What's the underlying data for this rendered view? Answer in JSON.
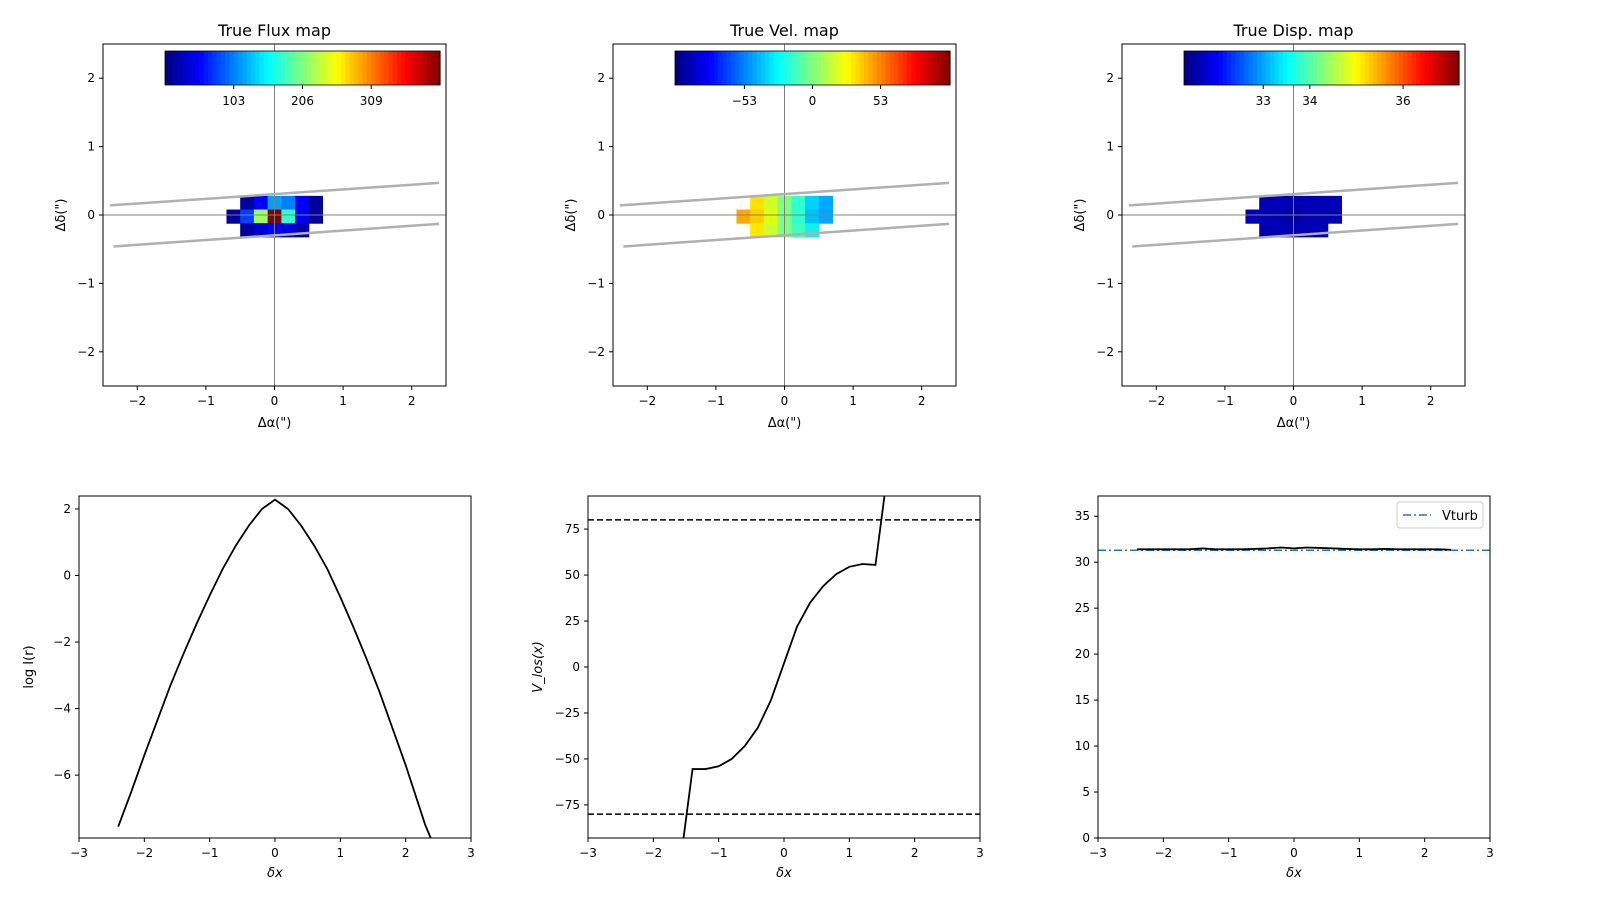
{
  "chart_data": [
    {
      "type": "heatmap",
      "title": "True Flux map",
      "xlabel": "Δα(\")",
      "ylabel": "Δδ(\")",
      "xlim": [
        -2.5,
        2.5
      ],
      "ylim": [
        -2.5,
        2.5
      ],
      "xticks": [
        -2,
        -1,
        0,
        1,
        2
      ],
      "yticks": [
        -2,
        -1,
        0,
        1,
        2
      ],
      "colorbar": {
        "range": [
          0,
          412
        ],
        "ticks": [
          103,
          206,
          309
        ],
        "cmap": "jet"
      },
      "slit": [
        [
          [
            -2.4,
            0.14
          ],
          [
            2.4,
            0.47
          ]
        ],
        [
          [
            -2.35,
            -0.46
          ],
          [
            2.4,
            -0.13
          ]
        ]
      ],
      "pixel_size": 0.2,
      "cells": [
        {
          "x": -0.4,
          "y": 0.18,
          "color": "#00009a"
        },
        {
          "x": -0.2,
          "y": 0.18,
          "color": "#0000ff"
        },
        {
          "x": 0,
          "y": 0.18,
          "color": "#00a0ff"
        },
        {
          "x": 0.2,
          "y": 0.18,
          "color": "#0080ff"
        },
        {
          "x": 0.4,
          "y": 0.18,
          "color": "#0000f5"
        },
        {
          "x": 0.6,
          "y": 0.18,
          "color": "#00009a"
        },
        {
          "x": -0.6,
          "y": -0.02,
          "color": "#00009a"
        },
        {
          "x": -0.4,
          "y": -0.02,
          "color": "#0040ff"
        },
        {
          "x": -0.2,
          "y": -0.02,
          "color": "#a0ff60"
        },
        {
          "x": 0,
          "y": -0.02,
          "color": "#800000"
        },
        {
          "x": 0.2,
          "y": -0.02,
          "color": "#30ffd0"
        },
        {
          "x": 0.4,
          "y": -0.02,
          "color": "#0000f0"
        },
        {
          "x": 0.6,
          "y": -0.02,
          "color": "#00009a"
        },
        {
          "x": -0.4,
          "y": -0.22,
          "color": "#0000a0"
        },
        {
          "x": -0.2,
          "y": -0.22,
          "color": "#0000d0"
        },
        {
          "x": 0,
          "y": -0.22,
          "color": "#0000ff"
        },
        {
          "x": 0.2,
          "y": -0.22,
          "color": "#0000e0"
        },
        {
          "x": 0.4,
          "y": -0.22,
          "color": "#0000b0"
        }
      ]
    },
    {
      "type": "heatmap",
      "title": "True Vel. map",
      "xlabel": "Δα(\")",
      "ylabel": "Δδ(\")",
      "xlim": [
        -2.5,
        2.5
      ],
      "ylim": [
        -2.5,
        2.5
      ],
      "xticks": [
        -2,
        -1,
        0,
        1,
        2
      ],
      "yticks": [
        -2,
        -1,
        0,
        1,
        2
      ],
      "colorbar": {
        "range": [
          -107,
          107
        ],
        "ticks": [
          -53,
          0,
          53
        ],
        "cmap": "jet"
      },
      "slit": [
        [
          [
            -2.4,
            0.14
          ],
          [
            2.4,
            0.47
          ]
        ],
        [
          [
            -2.35,
            -0.46
          ],
          [
            2.4,
            -0.13
          ]
        ]
      ],
      "pixel_size": 0.2,
      "cells": [
        {
          "x": -0.4,
          "y": 0.18,
          "color": "#ffe000"
        },
        {
          "x": -0.2,
          "y": 0.18,
          "color": "#d0ff20"
        },
        {
          "x": 0,
          "y": 0.18,
          "color": "#80ff80"
        },
        {
          "x": 0.2,
          "y": 0.18,
          "color": "#30ffd0"
        },
        {
          "x": 0.4,
          "y": 0.18,
          "color": "#00d0ff"
        },
        {
          "x": 0.6,
          "y": 0.18,
          "color": "#00a8ff"
        },
        {
          "x": -0.6,
          "y": -0.02,
          "color": "#ffa800"
        },
        {
          "x": -0.4,
          "y": -0.02,
          "color": "#ffd000"
        },
        {
          "x": -0.2,
          "y": -0.02,
          "color": "#e0ff10"
        },
        {
          "x": 0,
          "y": -0.02,
          "color": "#80ff80"
        },
        {
          "x": 0.2,
          "y": -0.02,
          "color": "#30ffd0"
        },
        {
          "x": 0.4,
          "y": -0.02,
          "color": "#00c0ff"
        },
        {
          "x": 0.6,
          "y": -0.02,
          "color": "#00a8ff"
        },
        {
          "x": -0.4,
          "y": -0.22,
          "color": "#ffe800"
        },
        {
          "x": -0.2,
          "y": -0.22,
          "color": "#d0ff30"
        },
        {
          "x": 0,
          "y": -0.22,
          "color": "#80ff80"
        },
        {
          "x": 0.2,
          "y": -0.22,
          "color": "#40ffc0"
        },
        {
          "x": 0.4,
          "y": -0.22,
          "color": "#10f0f0"
        }
      ]
    },
    {
      "type": "heatmap",
      "title": "True Disp. map",
      "xlabel": "Δα(\")",
      "ylabel": "Δδ(\")",
      "xlim": [
        -2.5,
        2.5
      ],
      "ylim": [
        -2.5,
        2.5
      ],
      "xticks": [
        -2,
        -1,
        0,
        1,
        2
      ],
      "yticks": [
        -2,
        -1,
        0,
        1,
        2
      ],
      "colorbar": {
        "range": [
          31.3,
          37.2
        ],
        "ticks": [
          33,
          34,
          36
        ],
        "cmap": "jet"
      },
      "slit": [
        [
          [
            -2.4,
            0.14
          ],
          [
            2.4,
            0.47
          ]
        ],
        [
          [
            -2.35,
            -0.46
          ],
          [
            2.4,
            -0.13
          ]
        ]
      ],
      "pixel_size": 0.2,
      "cells": [
        {
          "x": -0.4,
          "y": 0.18,
          "color": "#0000b4"
        },
        {
          "x": -0.2,
          "y": 0.18,
          "color": "#0000b4"
        },
        {
          "x": 0,
          "y": 0.18,
          "color": "#0000b0"
        },
        {
          "x": 0.2,
          "y": 0.18,
          "color": "#0000b4"
        },
        {
          "x": 0.4,
          "y": 0.18,
          "color": "#0000b4"
        },
        {
          "x": 0.6,
          "y": 0.18,
          "color": "#0000b4"
        },
        {
          "x": -0.6,
          "y": -0.02,
          "color": "#0000b4"
        },
        {
          "x": -0.4,
          "y": -0.02,
          "color": "#0000b4"
        },
        {
          "x": -0.2,
          "y": -0.02,
          "color": "#0000b0"
        },
        {
          "x": 0,
          "y": -0.02,
          "color": "#00009c"
        },
        {
          "x": 0.2,
          "y": -0.02,
          "color": "#0000b0"
        },
        {
          "x": 0.4,
          "y": -0.02,
          "color": "#0000b4"
        },
        {
          "x": 0.6,
          "y": -0.02,
          "color": "#0000b4"
        },
        {
          "x": -0.4,
          "y": -0.22,
          "color": "#0000b4"
        },
        {
          "x": -0.2,
          "y": -0.22,
          "color": "#0000b4"
        },
        {
          "x": 0,
          "y": -0.22,
          "color": "#0000b0"
        },
        {
          "x": 0.2,
          "y": -0.22,
          "color": "#0000b4"
        },
        {
          "x": 0.4,
          "y": -0.22,
          "color": "#0000b4"
        }
      ]
    },
    {
      "type": "line",
      "title": "",
      "xlabel": "δx",
      "ylabel": "log I(r)",
      "xlim": [
        -3,
        3
      ],
      "ylim": [
        -7.89,
        2.39
      ],
      "xticks": [
        -3,
        -2,
        -1,
        0,
        1,
        2,
        3
      ],
      "yticks": [
        -6,
        -4,
        -2,
        0,
        2
      ],
      "series": [
        {
          "name": "logI",
          "color": "#000000",
          "style": "solid",
          "x": [
            -2.4,
            -2.2,
            -2.0,
            -1.8,
            -1.6,
            -1.4,
            -1.2,
            -1.0,
            -0.8,
            -0.6,
            -0.4,
            -0.2,
            0,
            0.2,
            0.4,
            0.6,
            0.8,
            1.0,
            1.2,
            1.4,
            1.6,
            1.8,
            2.0,
            2.2,
            2.3,
            2.45
          ],
          "y": [
            -7.55,
            -6.5,
            -5.4,
            -4.35,
            -3.3,
            -2.35,
            -1.45,
            -0.6,
            0.2,
            0.9,
            1.5,
            2.0,
            2.28,
            2.0,
            1.5,
            0.9,
            0.2,
            -0.65,
            -1.55,
            -2.5,
            -3.5,
            -4.6,
            -5.7,
            -6.9,
            -7.5,
            -8.2
          ]
        }
      ]
    },
    {
      "type": "line",
      "title": "",
      "xlabel": "δx",
      "ylabel": "V_los(x)",
      "xlim": [
        -3,
        3
      ],
      "ylim": [
        -93,
        93
      ],
      "xticks": [
        -3,
        -2,
        -1,
        0,
        1,
        2,
        3
      ],
      "yticks": [
        -75,
        -50,
        -25,
        0,
        25,
        50,
        75
      ],
      "hlines": [
        {
          "y": 80,
          "style": "dashed",
          "color": "#000000"
        },
        {
          "y": -80,
          "style": "dashed",
          "color": "#000000"
        }
      ],
      "series": [
        {
          "name": "Vlos",
          "color": "#000000",
          "style": "solid",
          "x": [
            -1.6,
            -1.4,
            -1.2,
            -1.0,
            -0.8,
            -0.6,
            -0.4,
            -0.2,
            0,
            0.2,
            0.4,
            0.6,
            0.8,
            1.0,
            1.2,
            1.4,
            1.6
          ],
          "y": [
            -110,
            -55.5,
            -55.5,
            -54,
            -50,
            -43,
            -33,
            -18,
            2,
            22,
            35,
            44,
            50.5,
            54.5,
            56,
            55.5,
            110
          ]
        }
      ]
    },
    {
      "type": "line",
      "title": "",
      "xlabel": "δx",
      "ylabel": "",
      "xlim": [
        -3,
        3
      ],
      "ylim": [
        0,
        37.2
      ],
      "xticks": [
        -3,
        -2,
        -1,
        0,
        1,
        2,
        3
      ],
      "yticks": [
        0,
        5,
        10,
        15,
        20,
        25,
        30,
        35
      ],
      "legend": {
        "position": "top-right",
        "entries": [
          "Vturb"
        ]
      },
      "hlines": [
        {
          "y": 31.3,
          "style": "dashdot",
          "color": "#1f77b4",
          "label": "Vturb"
        }
      ],
      "series": [
        {
          "name": "dispersion",
          "color": "#000000",
          "style": "solid",
          "x": [
            -2.4,
            -2.2,
            -2.0,
            -1.8,
            -1.6,
            -1.4,
            -1.2,
            -1.0,
            -0.8,
            -0.6,
            -0.4,
            -0.2,
            0,
            0.2,
            0.4,
            0.6,
            0.8,
            1.0,
            1.2,
            1.4,
            1.6,
            1.8,
            2.0,
            2.2,
            2.4
          ],
          "y": [
            31.4,
            31.4,
            31.4,
            31.4,
            31.4,
            31.5,
            31.4,
            31.4,
            31.4,
            31.45,
            31.5,
            31.6,
            31.5,
            31.6,
            31.55,
            31.5,
            31.45,
            31.4,
            31.4,
            31.45,
            31.4,
            31.4,
            31.4,
            31.4,
            31.35
          ]
        }
      ]
    }
  ]
}
